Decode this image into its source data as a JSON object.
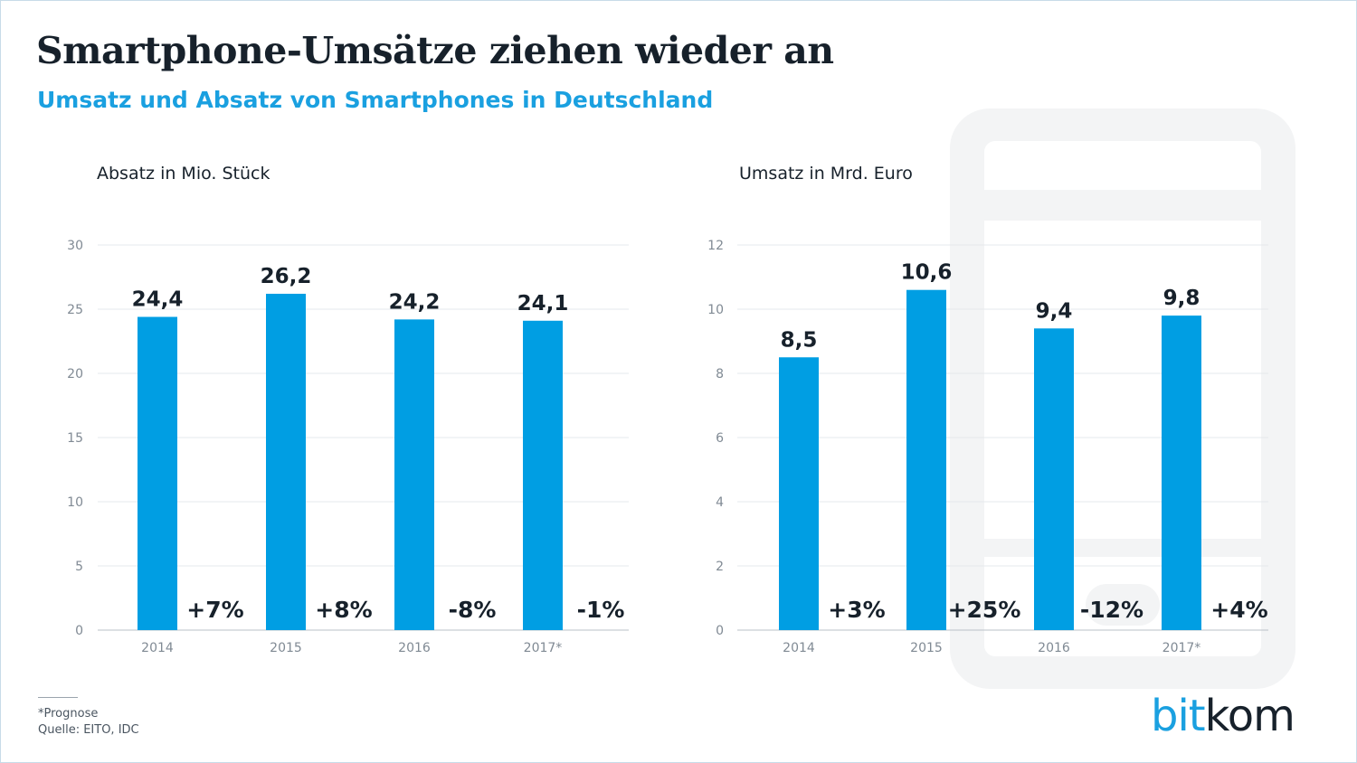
{
  "header": {
    "title": "Smartphone-Umsätze ziehen wieder an",
    "subtitle": "Umsatz und Absatz von Smartphones in Deutschland"
  },
  "footer": {
    "note": "*Prognose",
    "source": "Quelle: EITO, IDC"
  },
  "logo": {
    "part1": "bit",
    "part2": "kom"
  },
  "colors": {
    "bar": "#009ee3",
    "text": "#17212b",
    "axis": "#808a94",
    "grid": "#e6e9ec",
    "accent": "#1aa0e0"
  },
  "chart_data": [
    {
      "type": "bar",
      "title": "Absatz in Mio. Stück",
      "categories": [
        "2014",
        "2015",
        "2016",
        "2017*"
      ],
      "values": [
        24.4,
        26.2,
        24.2,
        24.1
      ],
      "value_labels": [
        "24,4",
        "26,2",
        "24,2",
        "24,1"
      ],
      "changes": [
        "+7%",
        "+8%",
        "-8%",
        "-1%"
      ],
      "ylim": [
        0,
        30
      ],
      "yticks": [
        0,
        5,
        10,
        15,
        20,
        25,
        30
      ],
      "grid": true
    },
    {
      "type": "bar",
      "title": "Umsatz in Mrd. Euro",
      "categories": [
        "2014",
        "2015",
        "2016",
        "2017*"
      ],
      "values": [
        8.5,
        10.6,
        9.4,
        9.8
      ],
      "value_labels": [
        "8,5",
        "10,6",
        "9,4",
        "9,8"
      ],
      "changes": [
        "+3%",
        "+25%",
        "-12%",
        "+4%"
      ],
      "ylim": [
        0,
        12
      ],
      "yticks": [
        0,
        2,
        4,
        6,
        8,
        10,
        12
      ],
      "grid": true
    }
  ]
}
